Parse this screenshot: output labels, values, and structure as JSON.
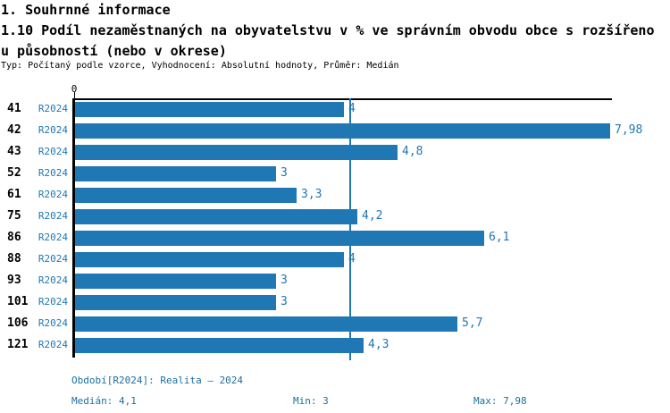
{
  "header": {
    "title": "1. Souhrnné informace",
    "subtitle_line1": "1.10 Podíl nezaměstnaných na obyvatelstvu v % ve správním obvodu obce s rozšířeno",
    "subtitle_line2": "u působností (nebo v okrese)",
    "meta": "Typ: Počítaný podle vzorce, Vyhodnocení: Absolutní hodnoty, Průměr: Medián"
  },
  "chart_data": {
    "type": "bar",
    "orientation": "horizontal",
    "title": "1.10 Podíl nezaměstnaných na obyvatelstvu v % ve správním obvodu obce s rozšířenou působností (nebo v okrese)",
    "categories": [
      "41",
      "42",
      "43",
      "52",
      "61",
      "75",
      "86",
      "88",
      "93",
      "101",
      "106",
      "121"
    ],
    "series": [
      {
        "name": "R2024",
        "values": [
          4,
          7.98,
          4.8,
          3,
          3.3,
          4.2,
          6.1,
          4,
          3,
          3,
          5.7,
          4.3
        ]
      }
    ],
    "value_labels": [
      "4",
      "7,98",
      "4,8",
      "3",
      "3,3",
      "4,2",
      "6,1",
      "4",
      "3",
      "3",
      "5,7",
      "4,3"
    ],
    "xlim": [
      0,
      8
    ],
    "x_tick_labels": [
      "0"
    ],
    "median_line": 4.1,
    "bar_color": "#1F77B4",
    "median_line_color": "#1F77B4",
    "grid": false,
    "legend_position": "none"
  },
  "footer": {
    "period": "Období[R2024]: Realita – 2024",
    "median": "Medián: 4,1",
    "min": "Min: 3",
    "max": "Max: 7,98"
  },
  "colors": {
    "bar": "#1F77B4",
    "accent_text": "#1F77B4",
    "footer_text": "#1C6FA0",
    "axis": "#000000",
    "background": "#FFFFFF"
  }
}
